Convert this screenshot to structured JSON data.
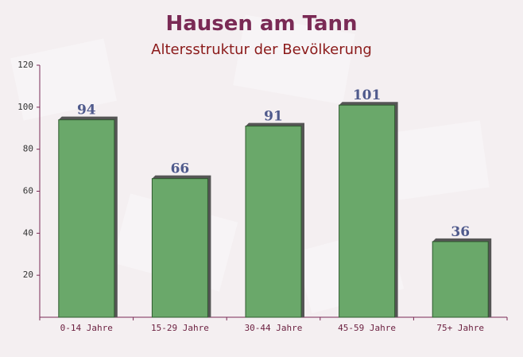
{
  "chart_data": {
    "type": "bar",
    "title": "Hausen am Tann",
    "subtitle": "Altersstruktur der Bevölkerung",
    "categories": [
      "0-14 Jahre",
      "15-29 Jahre",
      "30-44 Jahre",
      "45-59 Jahre",
      "75+ Jahre"
    ],
    "values": [
      94,
      66,
      91,
      101,
      36
    ],
    "color": "#6aa86a",
    "ylim": [
      0,
      120
    ],
    "yticks": [
      20,
      40,
      60,
      80,
      100,
      120
    ],
    "grid": false
  }
}
